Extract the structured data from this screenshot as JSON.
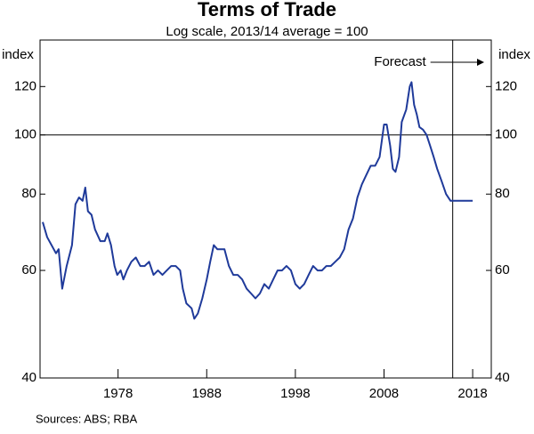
{
  "chart_data": {
    "type": "line",
    "title": "Terms of Trade",
    "subtitle": "Log scale, 2013/14 average = 100",
    "y_label_left": "index",
    "y_label_right": "index",
    "log_scale": true,
    "reference_line": 100,
    "forecast_label": "Forecast",
    "forecast_start": 2015.75,
    "source": "Sources:   ABS; RBA",
    "xlim": [
      1969.2,
      2020.1
    ],
    "xticks": [
      1978,
      1988,
      1998,
      2008,
      2018
    ],
    "ylim": [
      40,
      143
    ],
    "yticks": [
      40,
      60,
      80,
      100,
      120
    ],
    "x": [
      1969.5,
      1970.0,
      1970.5,
      1971.0,
      1971.3,
      1971.7,
      1972.2,
      1972.8,
      1973.2,
      1973.6,
      1974.0,
      1974.3,
      1974.6,
      1975.0,
      1975.4,
      1976.0,
      1976.5,
      1976.8,
      1977.2,
      1977.6,
      1977.9,
      1978.3,
      1978.6,
      1979.0,
      1979.5,
      1980.0,
      1980.5,
      1981.0,
      1981.5,
      1982.0,
      1982.5,
      1983.0,
      1983.5,
      1984.0,
      1984.5,
      1985.0,
      1985.3,
      1985.7,
      1986.3,
      1986.6,
      1987.0,
      1987.5,
      1988.0,
      1988.4,
      1988.8,
      1989.2,
      1989.6,
      1990.0,
      1990.5,
      1991.0,
      1991.5,
      1992.0,
      1992.5,
      1993.0,
      1993.5,
      1994.0,
      1994.5,
      1995.0,
      1995.5,
      1996.0,
      1996.5,
      1997.0,
      1997.5,
      1998.0,
      1998.5,
      1999.0,
      1999.5,
      2000.0,
      2000.5,
      2001.0,
      2001.5,
      2002.0,
      2002.5,
      2003.0,
      2003.5,
      2004.0,
      2004.5,
      2005.0,
      2005.5,
      2006.0,
      2006.5,
      2007.0,
      2007.5,
      2008.0,
      2008.3,
      2008.7,
      2009.0,
      2009.3,
      2009.7,
      2010.0,
      2010.5,
      2010.9,
      2011.1,
      2011.4,
      2011.7,
      2012.0,
      2012.4,
      2012.8,
      2013.2,
      2013.6,
      2014.0,
      2014.5,
      2015.0,
      2015.5,
      2016.0,
      2017.0,
      2018.0
    ],
    "series": [
      {
        "color": "#1f3a9a",
        "values": [
          72,
          68,
          66,
          64,
          65,
          56,
          61,
          66,
          77,
          79,
          78,
          82,
          75,
          74,
          70,
          67,
          67,
          69,
          66,
          61,
          59,
          60,
          58,
          60,
          62,
          63,
          61,
          61,
          62,
          59,
          60,
          59,
          60,
          61,
          61,
          60,
          56,
          53,
          52,
          50,
          51,
          54,
          58,
          62,
          66,
          65,
          65,
          65,
          61,
          59,
          59,
          58,
          56,
          55,
          54,
          55,
          57,
          56,
          58,
          60,
          60,
          61,
          60,
          57,
          56,
          57,
          59,
          61,
          60,
          60,
          61,
          61,
          62,
          63,
          65,
          70,
          73,
          79,
          83,
          86,
          89,
          89,
          92,
          104,
          104,
          96,
          88,
          87,
          92,
          105,
          110,
          120,
          122,
          112,
          108,
          103,
          102,
          100,
          96,
          92,
          88,
          84,
          80,
          78,
          78,
          78,
          78
        ]
      }
    ]
  }
}
